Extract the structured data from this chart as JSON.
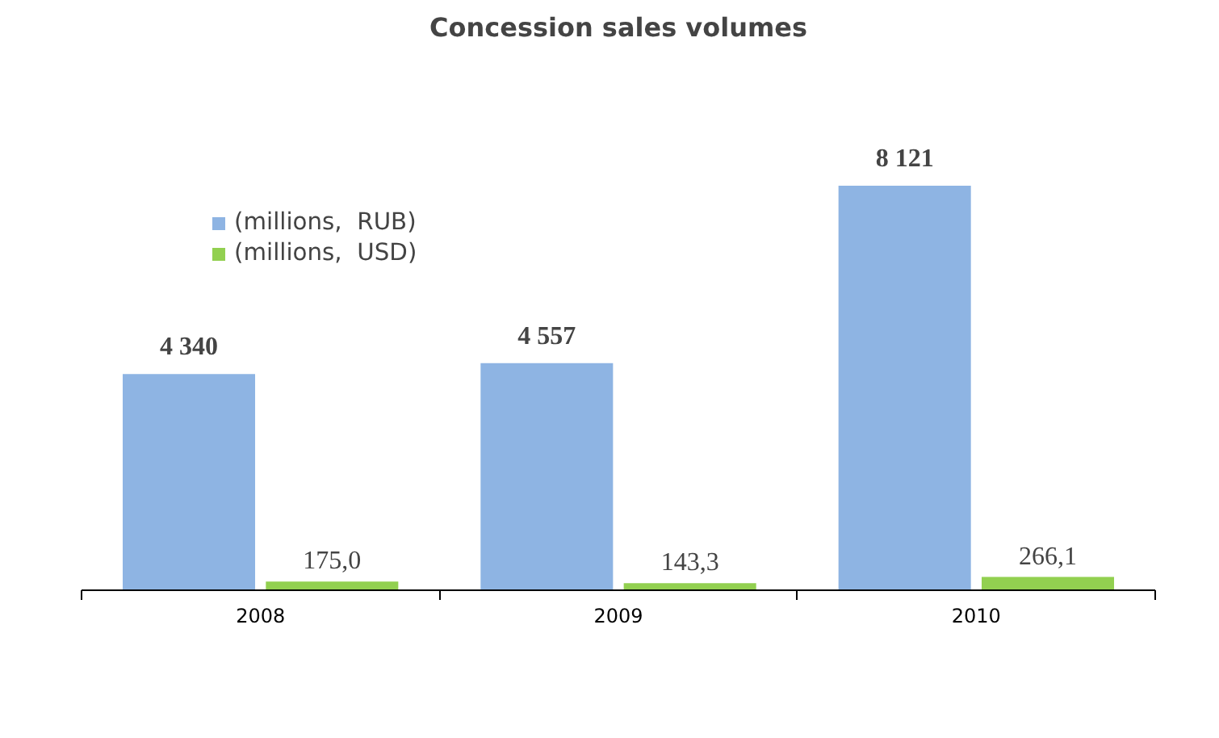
{
  "chart_data": {
    "type": "bar",
    "title": "Concession sales volumes",
    "categories": [
      "2008",
      "2009",
      "2010"
    ],
    "series": [
      {
        "name": "(millions,  RUB)",
        "color": "#8eb4e3",
        "values": [
          4340,
          4557,
          8121
        ],
        "value_labels": [
          "4 340",
          "4 557",
          "8 121"
        ]
      },
      {
        "name": "(millions,  USD)",
        "color": "#92d050",
        "values": [
          175.0,
          143.3,
          266.1
        ],
        "value_labels": [
          "175,0",
          "143,3",
          "266,1"
        ]
      }
    ],
    "legend": "top left",
    "grid": false,
    "tick_labels": "x"
  }
}
